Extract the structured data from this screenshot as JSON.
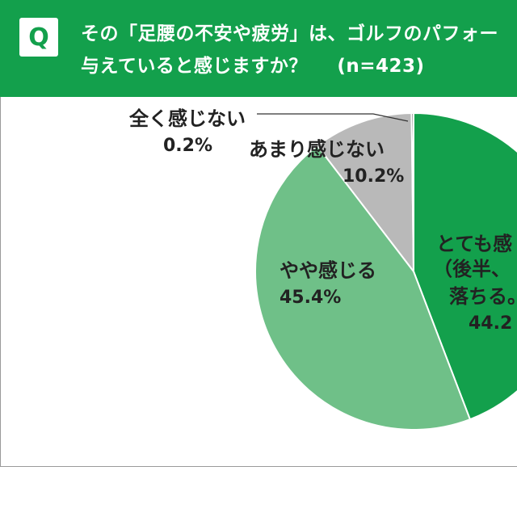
{
  "question": {
    "badge": "Q",
    "line1": "その「足腰の不安や疲労」は、ゴルフのパフォー",
    "line2": "与えていると感じますか？",
    "n": "(n=423)"
  },
  "colors": {
    "header": "#13a04c",
    "strong": "#13a04c",
    "somewhat": "#6fc088",
    "not_much": "#b9b9b9",
    "not_at_all": "#3a3a3a"
  },
  "chart_data": {
    "type": "pie",
    "start": "12 o'clock, clockwise",
    "slices": [
      {
        "key": "strong",
        "label": [
          "とても感",
          "（後半、",
          "落ちる。"
        ],
        "percent_text": "44.2",
        "value": 44.2
      },
      {
        "key": "somewhat",
        "label": [
          "やや感じる"
        ],
        "percent_text": "45.4%",
        "value": 45.4
      },
      {
        "key": "not_much",
        "label": [
          "あまり感じない"
        ],
        "percent_text": "10.2%",
        "value": 10.2
      },
      {
        "key": "not_at_all",
        "label": [
          "全く感じない"
        ],
        "percent_text": "0.2%",
        "value": 0.2
      }
    ]
  }
}
